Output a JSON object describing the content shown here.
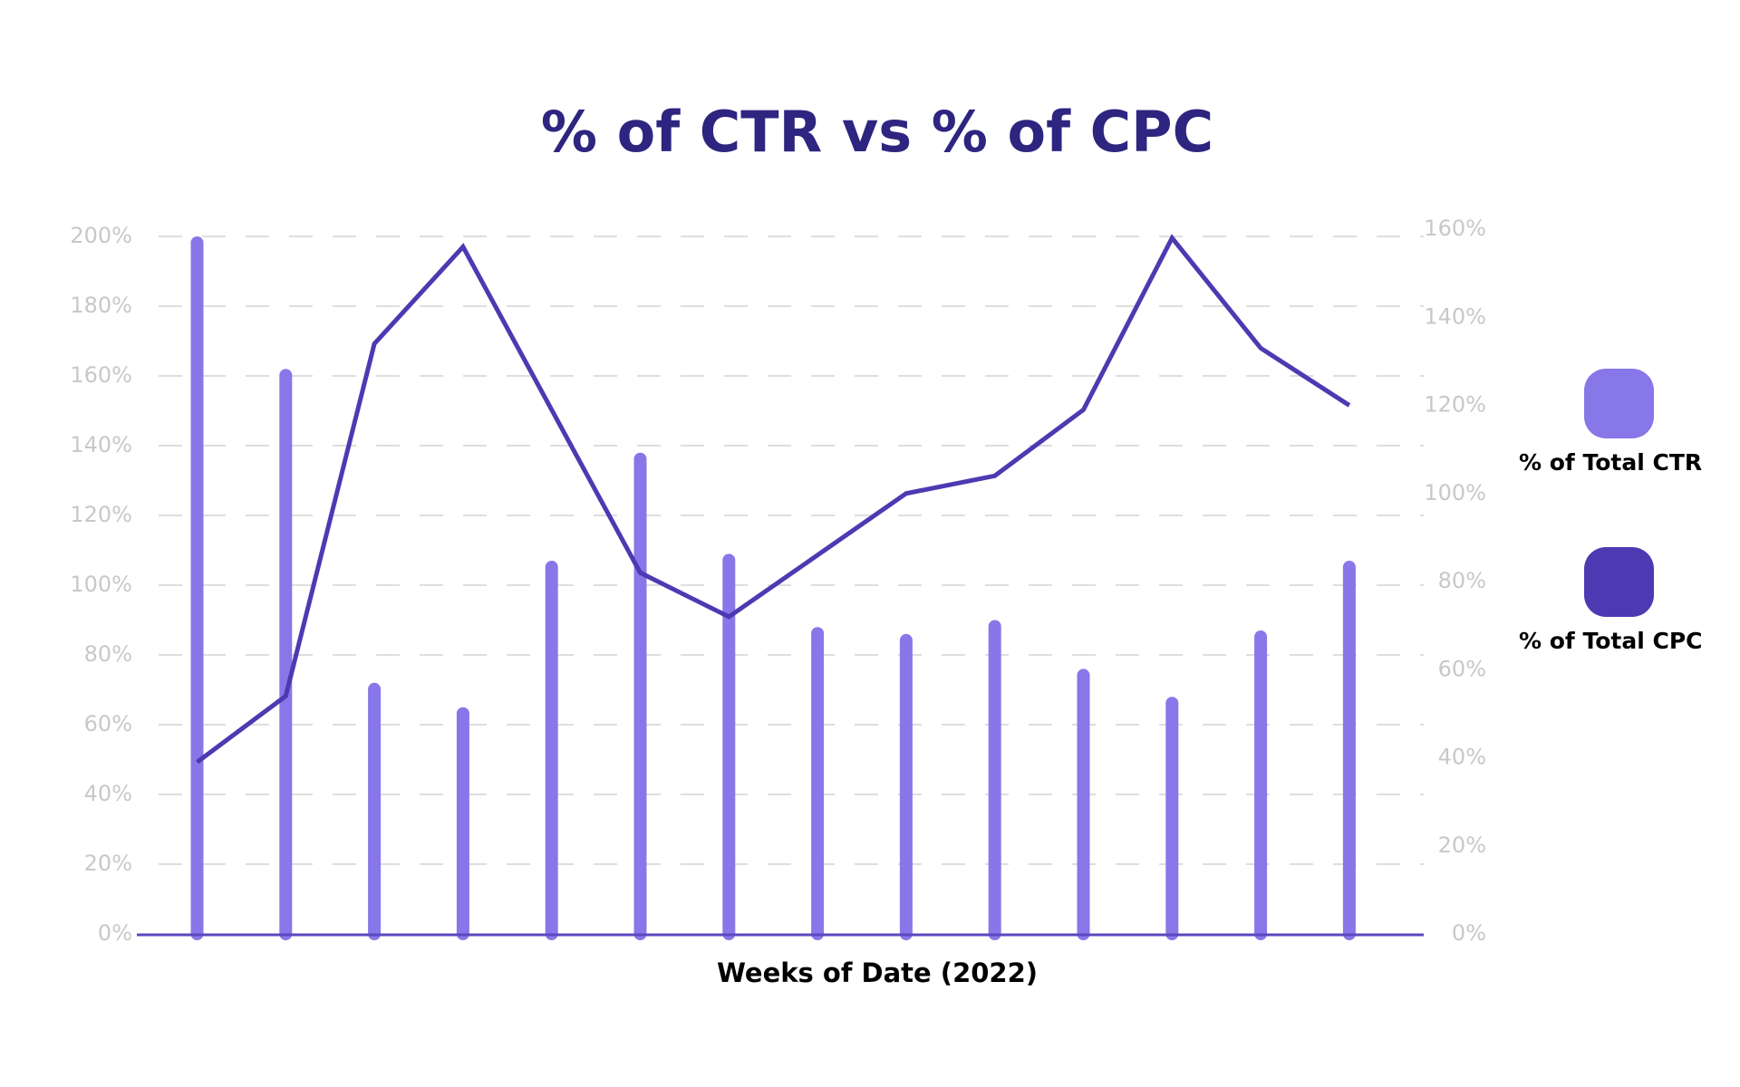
{
  "chart_data": {
    "type": "bar",
    "title": "% of CTR vs % of CPC",
    "x_label": "Weeks of Date (2022)",
    "categories": [
      null,
      null,
      null,
      null,
      null,
      null,
      null,
      null,
      null,
      null,
      null,
      null,
      null,
      null
    ],
    "series": [
      {
        "name": "% of Total CTR",
        "type": "bar",
        "color": "#8877e8",
        "values": [
          200,
          162,
          72,
          65,
          107,
          138,
          109,
          88,
          86,
          90,
          76,
          68,
          87,
          107
        ]
      },
      {
        "name": "% of Total CPC",
        "type": "line",
        "axis": "y2",
        "color": "#4d3ab2",
        "values": [
          39,
          54,
          134,
          156,
          119,
          82,
          72,
          86,
          100,
          104,
          119,
          158,
          133,
          120
        ]
      }
    ],
    "ylim": [
      0,
      200
    ],
    "yticks": [
      {
        "value": 0,
        "label": "0%"
      },
      {
        "value": 20,
        "label": "20%"
      },
      {
        "value": 40,
        "label": "40%"
      },
      {
        "value": 60,
        "label": "60%"
      },
      {
        "value": 80,
        "label": "80%"
      },
      {
        "value": 100,
        "label": "100%"
      },
      {
        "value": 120,
        "label": "120%"
      },
      {
        "value": 140,
        "label": "140%"
      },
      {
        "value": 160,
        "label": "160%"
      },
      {
        "value": 180,
        "label": "180%"
      },
      {
        "value": 200,
        "label": "200%"
      }
    ],
    "y2lim": [
      0,
      160
    ],
    "y2ticks": [
      {
        "value": 0,
        "label": "0%"
      },
      {
        "value": 20,
        "label": "20%"
      },
      {
        "value": 40,
        "label": "40%"
      },
      {
        "value": 60,
        "label": "60%"
      },
      {
        "value": 80,
        "label": "80%"
      },
      {
        "value": 100,
        "label": "100%"
      },
      {
        "value": 120,
        "label": "120%"
      },
      {
        "value": 140,
        "label": "140%"
      },
      {
        "value": 160,
        "label": "160%"
      }
    ],
    "grid": true
  }
}
